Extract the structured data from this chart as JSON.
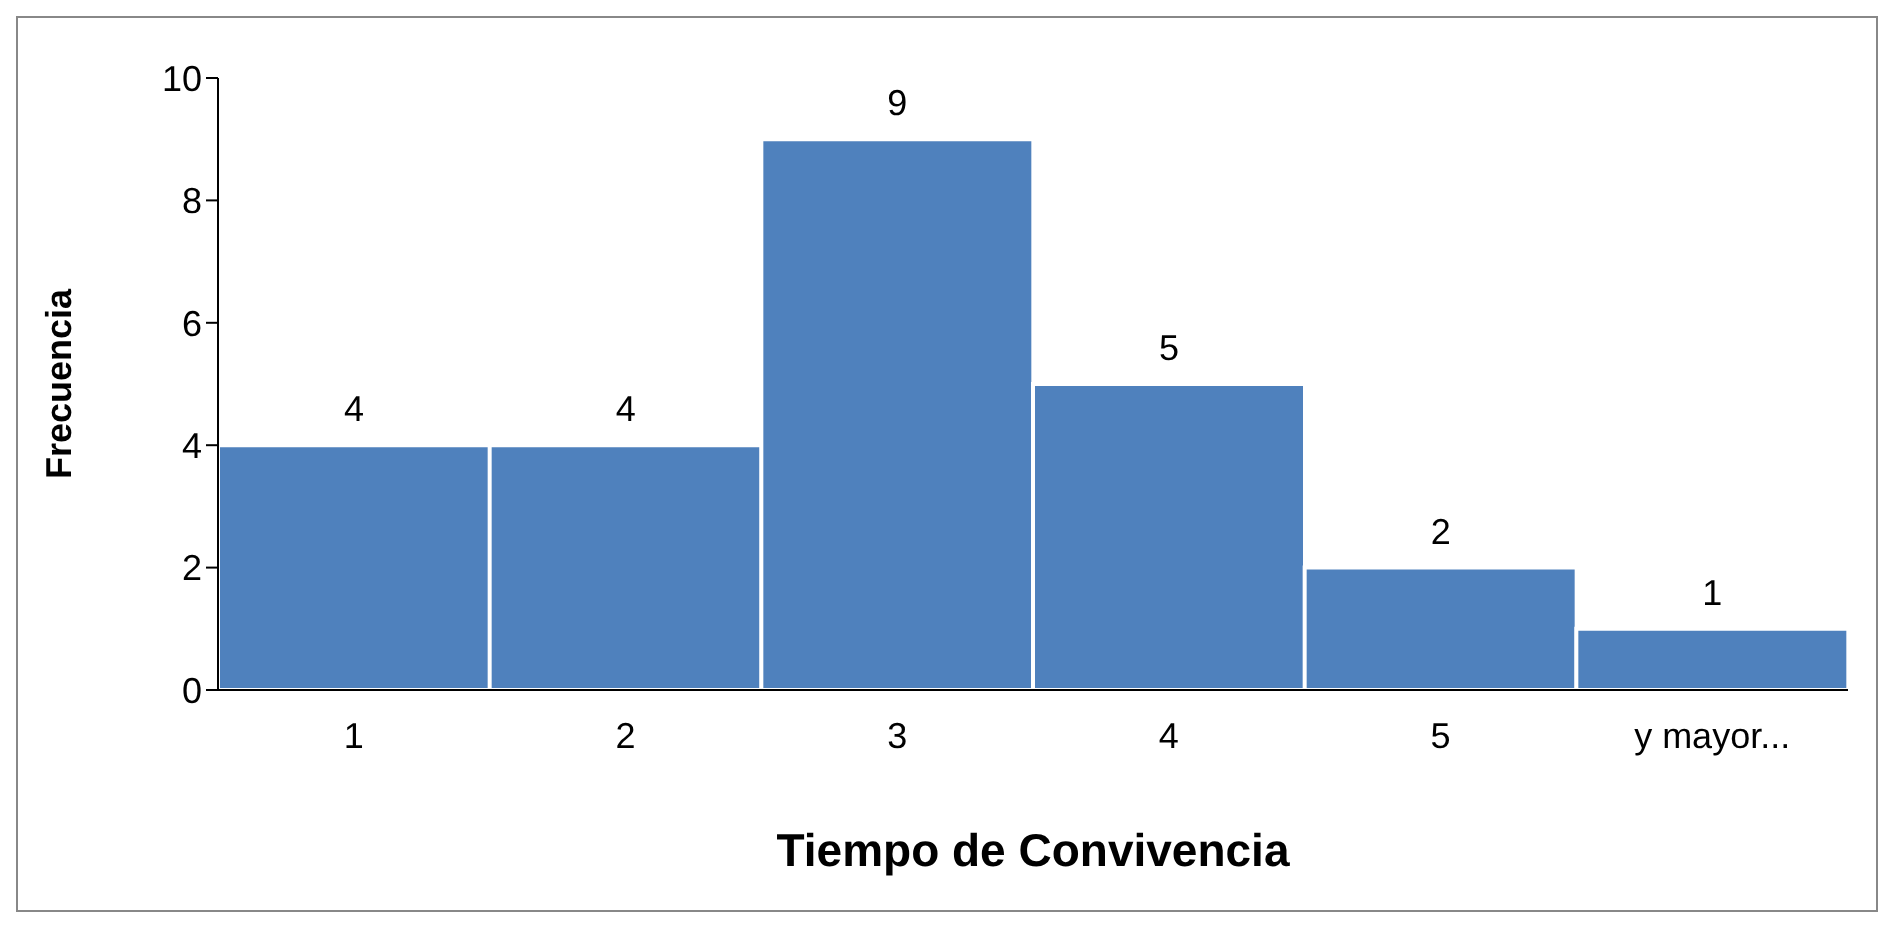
{
  "chart_data": {
    "type": "bar",
    "xlabel": "Tiempo de Convivencia",
    "ylabel": "Frecuencia",
    "categories": [
      "1",
      "2",
      "3",
      "4",
      "5",
      "y mayor..."
    ],
    "values": [
      4,
      4,
      9,
      5,
      2,
      1
    ],
    "color": "#4f81bd",
    "ylim": [
      0,
      10
    ],
    "yticks": [
      0,
      2,
      4,
      6,
      8,
      10
    ],
    "data_labels": true,
    "grid": false,
    "legend": false
  }
}
